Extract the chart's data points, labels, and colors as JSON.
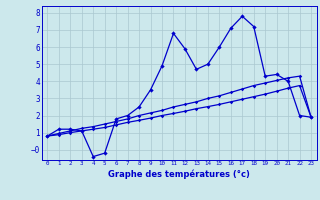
{
  "xlabel": "Graphe des températures (°c)",
  "background_color": "#cce8ec",
  "grid_color": "#aac8d0",
  "line_color": "#0000cc",
  "x_values": [
    0,
    1,
    2,
    3,
    4,
    5,
    6,
    7,
    8,
    9,
    10,
    11,
    12,
    13,
    14,
    15,
    16,
    17,
    18,
    19,
    20,
    21,
    22,
    23
  ],
  "temp_line": [
    0.8,
    1.2,
    1.2,
    1.1,
    -0.4,
    -0.2,
    1.8,
    2.0,
    2.5,
    3.5,
    4.9,
    6.8,
    5.9,
    4.7,
    5.0,
    6.0,
    7.1,
    7.8,
    7.2,
    4.3,
    4.4,
    4.0,
    2.0,
    1.9
  ],
  "line2": [
    0.8,
    0.95,
    1.1,
    1.25,
    1.35,
    1.5,
    1.65,
    1.8,
    2.0,
    2.15,
    2.3,
    2.5,
    2.65,
    2.8,
    3.0,
    3.15,
    3.35,
    3.55,
    3.75,
    3.9,
    4.05,
    4.2,
    4.3,
    1.9
  ],
  "line3": [
    0.8,
    0.88,
    1.0,
    1.1,
    1.2,
    1.3,
    1.45,
    1.6,
    1.72,
    1.85,
    2.0,
    2.12,
    2.25,
    2.4,
    2.52,
    2.65,
    2.8,
    2.95,
    3.1,
    3.25,
    3.42,
    3.6,
    3.75,
    1.9
  ],
  "ylim": [
    -0.6,
    8.4
  ],
  "xlim": [
    -0.5,
    23.5
  ],
  "yticks": [
    0,
    1,
    2,
    3,
    4,
    5,
    6,
    7,
    8
  ],
  "ytick_labels": [
    "−0",
    "1",
    "2",
    "3",
    "4",
    "5",
    "6",
    "7",
    "8"
  ]
}
